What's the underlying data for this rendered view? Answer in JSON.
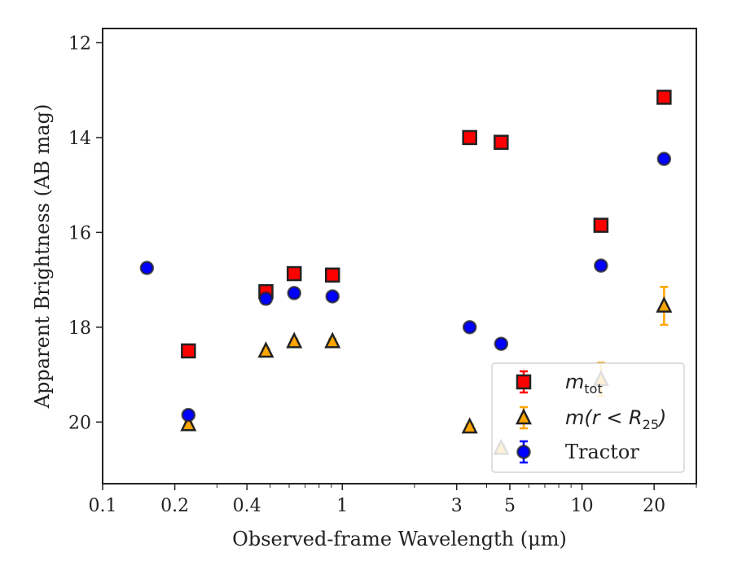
{
  "chart_data": {
    "type": "scatter",
    "title": "",
    "xlabel": "Observed-frame Wavelength (μm)",
    "ylabel": "Apparent Brightness (AB mag)",
    "xscale": "log",
    "xlim": [
      0.1,
      30
    ],
    "ylim": [
      21.3,
      11.7
    ],
    "y_inverted": true,
    "grid": false,
    "legend_placement": "lower-right",
    "x_ticks": [
      {
        "value": 0.1,
        "label": "0.1"
      },
      {
        "value": 0.2,
        "label": "0.2"
      },
      {
        "value": 0.4,
        "label": "0.4"
      },
      {
        "value": 1,
        "label": "1"
      },
      {
        "value": 3,
        "label": "3"
      },
      {
        "value": 5,
        "label": "5"
      },
      {
        "value": 10,
        "label": "10"
      },
      {
        "value": 20,
        "label": "20"
      }
    ],
    "y_ticks": [
      {
        "value": 12,
        "label": "12"
      },
      {
        "value": 14,
        "label": "14"
      },
      {
        "value": 16,
        "label": "16"
      },
      {
        "value": 18,
        "label": "18"
      },
      {
        "value": 20,
        "label": "20"
      }
    ],
    "series": [
      {
        "legend_base": "m",
        "legend_sub": "tot",
        "marker": "square",
        "color": "#ff0000",
        "edge_color": "#222222",
        "points": [
          {
            "x": 0.228,
            "y": 18.5,
            "err": 0.05
          },
          {
            "x": 0.48,
            "y": 17.25,
            "err": 0.05
          },
          {
            "x": 0.63,
            "y": 16.87,
            "err": 0.05
          },
          {
            "x": 0.91,
            "y": 16.9,
            "err": 0.05
          },
          {
            "x": 3.4,
            "y": 14.0,
            "err": 0.05
          },
          {
            "x": 4.6,
            "y": 14.1,
            "err": 0.05
          },
          {
            "x": 12.0,
            "y": 15.85,
            "err": 0.05
          },
          {
            "x": 22.0,
            "y": 13.15,
            "err": 0.05
          }
        ]
      },
      {
        "legend_base": "m(r < R",
        "legend_sub": "25",
        "legend_tail": ")",
        "marker": "triangle",
        "color": "#ffa500",
        "edge_color": "#222222",
        "points": [
          {
            "x": 0.228,
            "y": 20.05,
            "err": 0.05
          },
          {
            "x": 0.48,
            "y": 18.5,
            "err": 0.05
          },
          {
            "x": 0.63,
            "y": 18.3,
            "err": 0.05
          },
          {
            "x": 0.91,
            "y": 18.3,
            "err": 0.05
          },
          {
            "x": 3.4,
            "y": 20.1,
            "err": 0.05
          },
          {
            "x": 4.6,
            "y": 20.55,
            "err": 0.08
          },
          {
            "x": 12.0,
            "y": 19.1,
            "err": 0.35
          },
          {
            "x": 22.0,
            "y": 17.55,
            "err": 0.4
          }
        ]
      },
      {
        "name": "Tractor",
        "marker": "circle",
        "color": "#0000ff",
        "edge_color": "#222222",
        "points": [
          {
            "x": 0.153,
            "y": 16.75,
            "err": 0.05
          },
          {
            "x": 0.228,
            "y": 19.85,
            "err": 0.05
          },
          {
            "x": 0.48,
            "y": 17.4,
            "err": 0.1
          },
          {
            "x": 0.63,
            "y": 17.28,
            "err": 0.05
          },
          {
            "x": 0.91,
            "y": 17.35,
            "err": 0.05
          },
          {
            "x": 3.4,
            "y": 18.0,
            "err": 0.05
          },
          {
            "x": 4.6,
            "y": 18.35,
            "err": 0.05
          },
          {
            "x": 12.0,
            "y": 16.7,
            "err": 0.05
          },
          {
            "x": 22.0,
            "y": 14.45,
            "err": 0.05
          }
        ]
      }
    ]
  }
}
